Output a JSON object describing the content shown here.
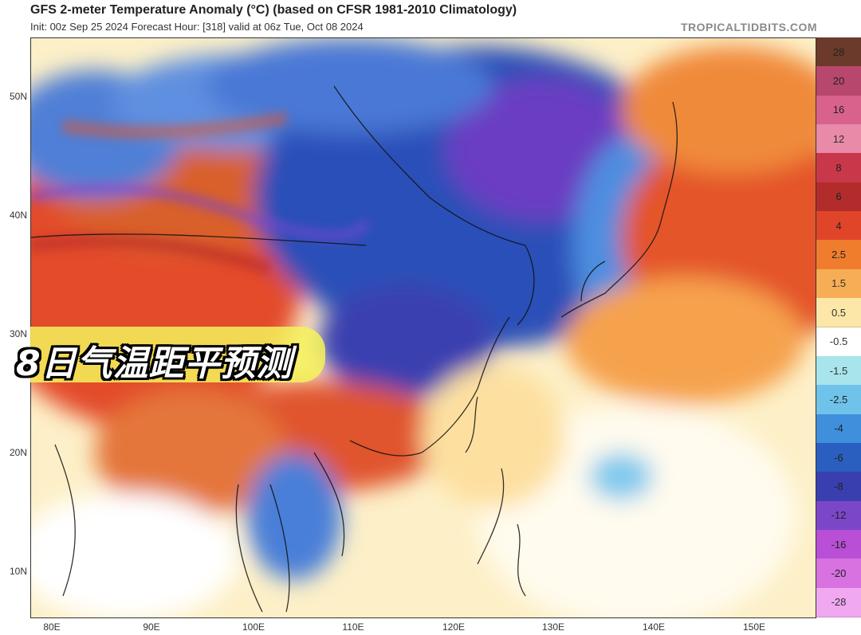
{
  "header": {
    "title": "GFS 2-meter Temperature Anomaly (°C) (based on CFSR 1981-2010 Climatology)",
    "subtitle": "Init: 00z Sep 25 2024   Forecast Hour: [318]   valid at 06z Tue, Oct 08 2024",
    "brand": "TROPICALTIDBITS.COM"
  },
  "map": {
    "latitude_labels": [
      "50N",
      "40N",
      "30N",
      "20N",
      "10N"
    ],
    "longitude_labels": [
      "80E",
      "90E",
      "100E",
      "110E",
      "120E",
      "130E",
      "140E",
      "150E"
    ]
  },
  "colorbar": {
    "labels": [
      "28",
      "20",
      "16",
      "12",
      "8",
      "6",
      "4",
      "2.5",
      "1.5",
      "0.5",
      "-0.5",
      "-1.5",
      "-2.5",
      "-4",
      "-6",
      "-8",
      "-12",
      "-16",
      "-20",
      "-28"
    ],
    "colors": [
      "#6b3a2a",
      "#b8476d",
      "#d9628d",
      "#e88aa8",
      "#c8384a",
      "#b22c2c",
      "#e0452a",
      "#f07d2e",
      "#f7ad55",
      "#fde7a8",
      "#ffffff",
      "#a8e4ec",
      "#6fc3ea",
      "#3f8fdc",
      "#2a5fbf",
      "#3a3fb0",
      "#7b47c8",
      "#b84fd6",
      "#d772e0",
      "#f0a8f0",
      "#f6b6c4"
    ]
  },
  "overlay": {
    "caption": "8日气温距平预测"
  }
}
